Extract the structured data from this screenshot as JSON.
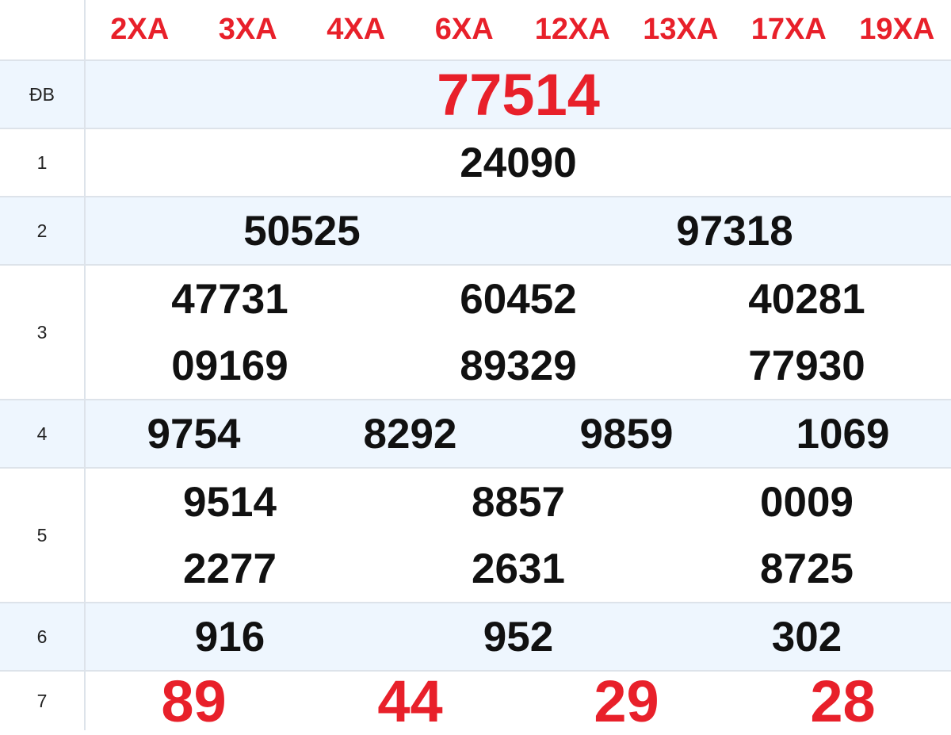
{
  "colors": {
    "red": "#e8202a",
    "row_alt": "#eef6fe",
    "border": "#dde3ea"
  },
  "header": {
    "codes": [
      "2XA",
      "3XA",
      "4XA",
      "6XA",
      "12XA",
      "13XA",
      "17XA",
      "19XA"
    ]
  },
  "rows": [
    {
      "label": "ĐB",
      "values": [
        "77514"
      ]
    },
    {
      "label": "1",
      "values": [
        "24090"
      ]
    },
    {
      "label": "2",
      "values": [
        "50525",
        "97318"
      ]
    },
    {
      "label": "3",
      "values": [
        "47731",
        "60452",
        "40281",
        "09169",
        "89329",
        "77930"
      ]
    },
    {
      "label": "4",
      "values": [
        "9754",
        "8292",
        "9859",
        "1069"
      ]
    },
    {
      "label": "5",
      "values": [
        "9514",
        "8857",
        "0009",
        "2277",
        "2631",
        "8725"
      ]
    },
    {
      "label": "6",
      "values": [
        "916",
        "952",
        "302"
      ]
    },
    {
      "label": "7",
      "values": [
        "89",
        "44",
        "29",
        "28"
      ]
    }
  ]
}
